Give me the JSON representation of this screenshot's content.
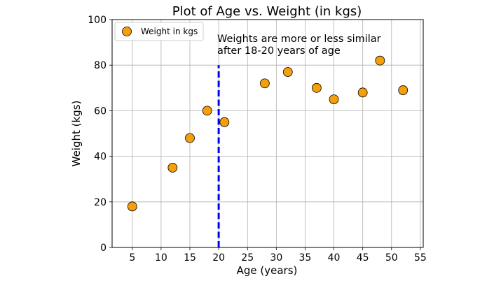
{
  "chart_data": {
    "type": "scatter",
    "title": "Plot of Age vs. Weight (in kgs)",
    "xlabel": "Age (years)",
    "ylabel": "Weight (kgs)",
    "xlim": [
      1.5,
      55.5
    ],
    "ylim": [
      0,
      100
    ],
    "xticks": [
      "5",
      "10",
      "15",
      "20",
      "25",
      "30",
      "35",
      "40",
      "45",
      "50",
      "55"
    ],
    "yticks": [
      "0",
      "20",
      "40",
      "60",
      "80",
      "100"
    ],
    "grid": true,
    "legend_position": "top-left",
    "series": [
      {
        "name": "Weight in kgs",
        "color": "#f5a00b",
        "points": [
          {
            "x": 5,
            "y": 18
          },
          {
            "x": 12,
            "y": 35
          },
          {
            "x": 15,
            "y": 48
          },
          {
            "x": 18,
            "y": 60
          },
          {
            "x": 21,
            "y": 55
          },
          {
            "x": 28,
            "y": 72
          },
          {
            "x": 32,
            "y": 77
          },
          {
            "x": 37,
            "y": 70
          },
          {
            "x": 40,
            "y": 65
          },
          {
            "x": 45,
            "y": 68
          },
          {
            "x": 48,
            "y": 82
          },
          {
            "x": 52,
            "y": 69
          }
        ]
      }
    ],
    "reference_line": {
      "x": 20,
      "y_range": [
        0,
        80
      ],
      "color": "#0000ff",
      "style": "dashed"
    },
    "annotation": {
      "lines": [
        "Weights are more or less similar",
        "after 18-20 years of age"
      ],
      "x": 20,
      "y": 85
    }
  }
}
